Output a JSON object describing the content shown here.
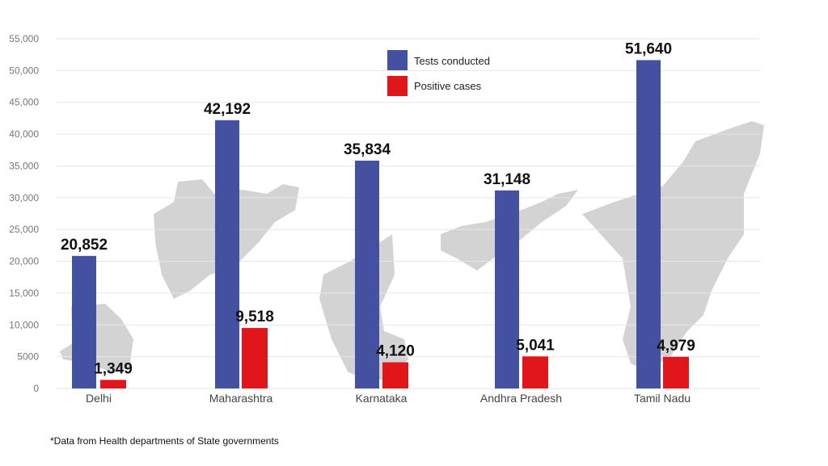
{
  "chart_data": {
    "type": "bar",
    "categories": [
      "Delhi",
      "Maharashtra",
      "Karnataka",
      "Andhra Pradesh",
      "Tamil Nadu"
    ],
    "series": [
      {
        "name": "Tests conducted",
        "color": "#4450A0",
        "values": [
          20852,
          42192,
          35834,
          31148,
          51640
        ],
        "labels": [
          "20,852",
          "42,192",
          "35,834",
          "31,148",
          "51,640"
        ]
      },
      {
        "name": "Positive cases",
        "color": "#E0161B",
        "values": [
          1349,
          9518,
          4120,
          5041,
          4979
        ],
        "labels": [
          "1,349",
          "9,518",
          "4,120",
          "5,041",
          "4,979"
        ]
      }
    ],
    "yticks": [
      "0",
      "5000",
      "10,000",
      "15,000",
      "20,000",
      "25,000",
      "30,000",
      "35,000",
      "40,000",
      "45,000",
      "50,000",
      "55,000"
    ],
    "ylim": [
      0,
      55000
    ],
    "grid": true,
    "legend": "top-center",
    "background_decoration": "grey state map silhouettes behind each state's bars",
    "footnote": "*Data from Health departments of State governments"
  }
}
